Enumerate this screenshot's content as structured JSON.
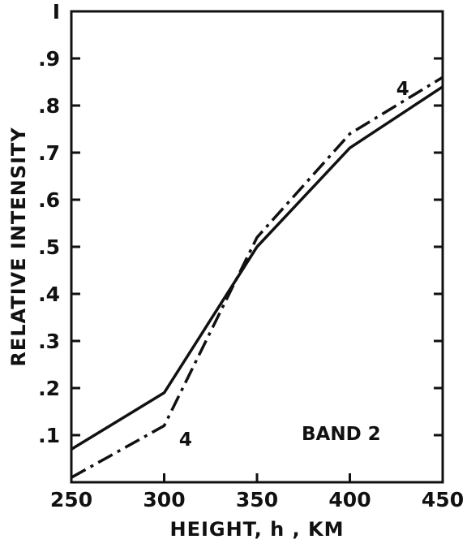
{
  "chart_data": {
    "type": "line",
    "title": "",
    "xlabel": "HEIGHT, h , KM",
    "ylabel": "RELATIVE INTENSITY",
    "xlim": [
      250,
      450
    ],
    "ylim": [
      0,
      1
    ],
    "x_ticks": [
      250,
      300,
      350,
      400,
      450
    ],
    "x_tick_labels": [
      "250",
      "300",
      "350",
      "400",
      "450"
    ],
    "y_ticks": [
      0.1,
      0.2,
      0.3,
      0.4,
      0.5,
      0.6,
      0.7,
      0.8,
      0.9,
      1.0
    ],
    "y_tick_labels": [
      ".1",
      ".2",
      ".3",
      ".4",
      ".5",
      ".6",
      ".7",
      ".8",
      ".9",
      "I"
    ],
    "grid": false,
    "legend": "none",
    "panel_label": "BAND 2",
    "series": [
      {
        "style": "solid",
        "x": [
          250,
          300,
          350,
          400,
          450
        ],
        "y": [
          0.07,
          0.19,
          0.5,
          0.71,
          0.84
        ]
      },
      {
        "style": "dash-dot",
        "label": "4",
        "x": [
          250,
          300,
          330,
          350,
          400,
          450
        ],
        "y": [
          0.01,
          0.12,
          0.36,
          0.52,
          0.74,
          0.86
        ]
      }
    ],
    "annotations": [
      {
        "text": "4",
        "x": 308,
        "y": 0.095
      },
      {
        "text": "4",
        "x": 425,
        "y": 0.84
      }
    ],
    "colors": {
      "line": "#111111",
      "axis": "#111111",
      "background": "#ffffff"
    }
  }
}
